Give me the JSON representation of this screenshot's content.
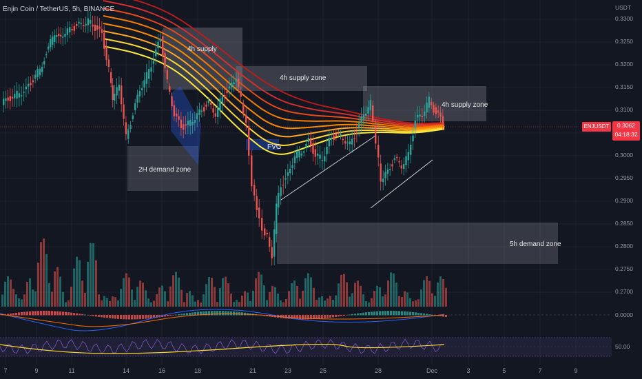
{
  "header": {
    "symbol_title": "Enjin Coin / TetherUS, 5h, BINANCE",
    "quote_currency": "USDT"
  },
  "price_axis": {
    "labels": [
      "0.3300",
      "0.3250",
      "0.3200",
      "0.3150",
      "0.3100",
      "0.3050",
      "0.3000",
      "0.2950",
      "0.2900",
      "0.2850",
      "0.2800",
      "0.2750",
      "0.2700"
    ]
  },
  "current_price": {
    "ticker": "ENJUSDT",
    "price": "0.3062",
    "countdown": "04:18:32"
  },
  "oscillators": {
    "macd_zero_label": "0.0000",
    "rsi_mid_label": "50.00"
  },
  "time_axis": {
    "labels": [
      "7",
      "9",
      "11",
      "14",
      "16",
      "18",
      "21",
      "23",
      "25",
      "28",
      "Dec",
      "3",
      "5",
      "7",
      "9"
    ]
  },
  "annotations": {
    "supply_4h": "4h supply",
    "supply_zone_4h_a": "4h supply zone",
    "supply_zone_4h_b": "4h supply zone",
    "demand_zone_2h": "2H demand zone",
    "fvg": "FVG",
    "demand_zone_5h": "5h demand zone"
  },
  "colors": {
    "background": "#131722",
    "bull": "#26a69a",
    "bear": "#ef5350",
    "price_tag": "#f23645"
  }
}
